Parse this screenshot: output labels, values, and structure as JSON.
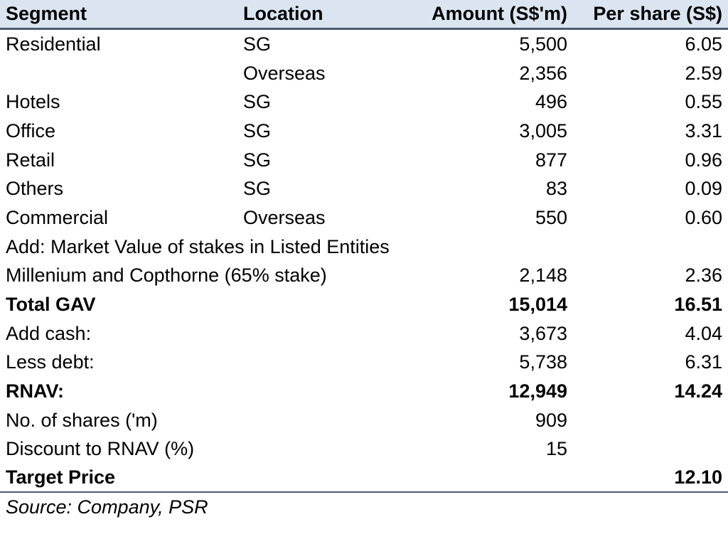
{
  "header": {
    "segment": "Segment",
    "location": "Location",
    "amount": "Amount (S$'m)",
    "per_share": "Per share (S$)"
  },
  "rows": [
    {
      "segment": "Residential",
      "location": "SG",
      "amount": "5,500",
      "per_share": "6.05",
      "bold": false
    },
    {
      "segment": "",
      "location": "Overseas",
      "amount": "2,356",
      "per_share": "2.59",
      "bold": false
    },
    {
      "segment": "Hotels",
      "location": "SG",
      "amount": "496",
      "per_share": "0.55",
      "bold": false
    },
    {
      "segment": "Office",
      "location": "SG",
      "amount": "3,005",
      "per_share": "3.31",
      "bold": false
    },
    {
      "segment": "Retail",
      "location": "SG",
      "amount": "877",
      "per_share": "0.96",
      "bold": false
    },
    {
      "segment": "Others",
      "location": "SG",
      "amount": "83",
      "per_share": "0.09",
      "bold": false
    },
    {
      "segment": "Commercial",
      "location": "Overseas",
      "amount": "550",
      "per_share": "0.60",
      "bold": false
    },
    {
      "segment": "Add: Market Value of stakes in Listed Entities",
      "location": "",
      "amount": "",
      "per_share": "",
      "bold": false
    },
    {
      "segment": "Millenium and Copthorne (65% stake)",
      "location": "",
      "amount": "2,148",
      "per_share": "2.36",
      "bold": false
    },
    {
      "segment": "Total GAV",
      "location": "",
      "amount": "15,014",
      "per_share": "16.51",
      "bold": true
    },
    {
      "segment": "Add cash:",
      "location": "",
      "amount": "3,673",
      "per_share": "4.04",
      "bold": false
    },
    {
      "segment": "Less debt:",
      "location": "",
      "amount": "5,738",
      "per_share": "6.31",
      "bold": false
    },
    {
      "segment": "RNAV:",
      "location": "",
      "amount": "12,949",
      "per_share": "14.24",
      "bold": true
    },
    {
      "segment": "No. of shares ('m)",
      "location": "",
      "amount": "909",
      "per_share": "",
      "bold": false
    },
    {
      "segment": "Discount to RNAV (%)",
      "location": "",
      "amount": "15",
      "per_share": "",
      "bold": false
    },
    {
      "segment": "Target Price",
      "location": "",
      "amount": "",
      "per_share": "12.10",
      "bold": true
    }
  ],
  "source": "Source: Company, PSR"
}
